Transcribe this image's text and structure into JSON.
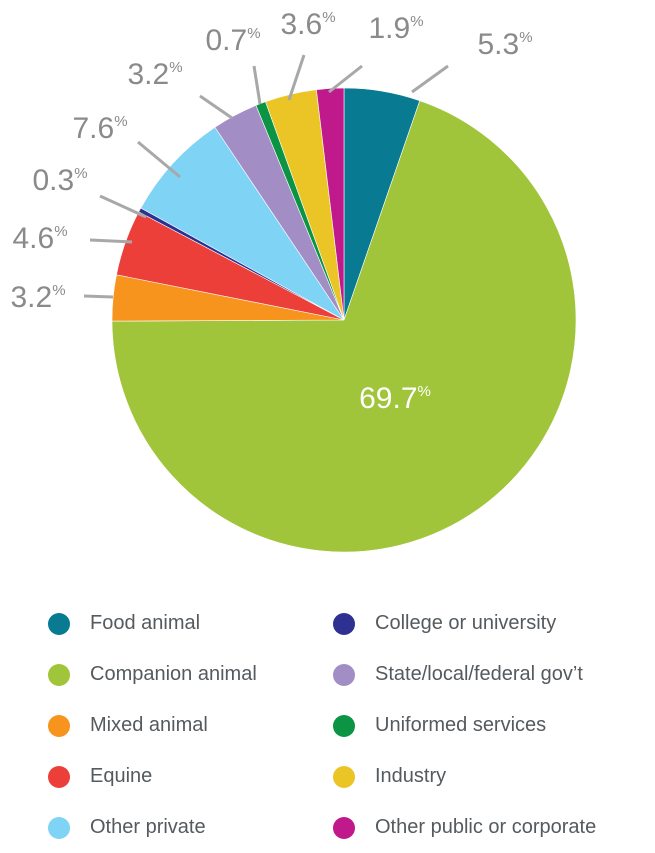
{
  "chart_data": {
    "type": "pie",
    "slices": [
      {
        "label": "Food animal",
        "value": 5.3,
        "display": "5.3",
        "color": "#087a91"
      },
      {
        "label": "Companion animal",
        "value": 69.7,
        "display": "69.7",
        "color": "#a0c43a"
      },
      {
        "label": "Mixed animal",
        "value": 3.2,
        "display": "3.2",
        "color": "#f7941d"
      },
      {
        "label": "Equine",
        "value": 4.6,
        "display": "4.6",
        "color": "#ec3f3a"
      },
      {
        "label": "College or university",
        "value": 0.3,
        "display": "0.3",
        "color": "#2e3192"
      },
      {
        "label": "Other private",
        "value": 7.6,
        "display": "7.6",
        "color": "#7fd3f5"
      },
      {
        "label": "State/local/federal gov’t",
        "value": 3.2,
        "display": "3.2",
        "color": "#a28ec4"
      },
      {
        "label": "Uniformed services",
        "value": 0.7,
        "display": "0.7",
        "color": "#0b9444"
      },
      {
        "label": "Industry",
        "value": 3.6,
        "display": "3.6",
        "color": "#ebc526"
      },
      {
        "label": "Other public or corporate",
        "value": 1.9,
        "display": "1.9",
        "color": "#c0198c"
      }
    ],
    "percent_symbol": "%",
    "legend_placement": "bottom, two columns",
    "start": "12 o'clock, clockwise"
  },
  "legend": {
    "left_column": [
      {
        "label": "Food animal",
        "color": "#087a91"
      },
      {
        "label": "Companion animal",
        "color": "#a0c43a"
      },
      {
        "label": "Mixed animal",
        "color": "#f7941d"
      },
      {
        "label": "Equine",
        "color": "#ec3f3a"
      },
      {
        "label": "Other private",
        "color": "#7fd3f5"
      }
    ],
    "right_column": [
      {
        "label": "College or university",
        "color": "#2e3192"
      },
      {
        "label": "State/local/federal gov’t",
        "color": "#a28ec4"
      },
      {
        "label": "Uniformed services",
        "color": "#0b9444"
      },
      {
        "label": "Industry",
        "color": "#ebc526"
      },
      {
        "label": "Other public or corporate",
        "color": "#c0198c"
      }
    ]
  }
}
